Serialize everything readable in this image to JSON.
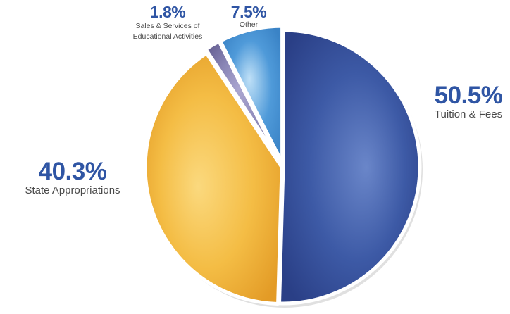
{
  "chart_data": {
    "type": "pie",
    "title": "",
    "start_angle_deg": 0,
    "direction": "clockwise",
    "slices": [
      {
        "label": "Tuition & Fees",
        "percent_label": "50.5%",
        "value": 50.5,
        "color": "#3d5aa6",
        "light": "#6a86c9",
        "dark": "#2a3f86"
      },
      {
        "label": "State Appropriations",
        "percent_label": "40.3%",
        "value": 40.3,
        "color": "#f4bd45",
        "light": "#fbd97e",
        "dark": "#e39b26"
      },
      {
        "label": "Sales & Services of Educational Activities",
        "label_lines": [
          "Sales & Services of",
          "Educational Activities"
        ],
        "percent_label": "1.8%",
        "value": 1.8,
        "color": "#8a86b6",
        "light": "#aaa6d0",
        "dark": "#6a6496"
      },
      {
        "label": "Other",
        "percent_label": "7.5%",
        "value": 7.5,
        "color": "#4f9ad9",
        "light": "#bfe0f7",
        "dark": "#3a83c6"
      }
    ]
  }
}
